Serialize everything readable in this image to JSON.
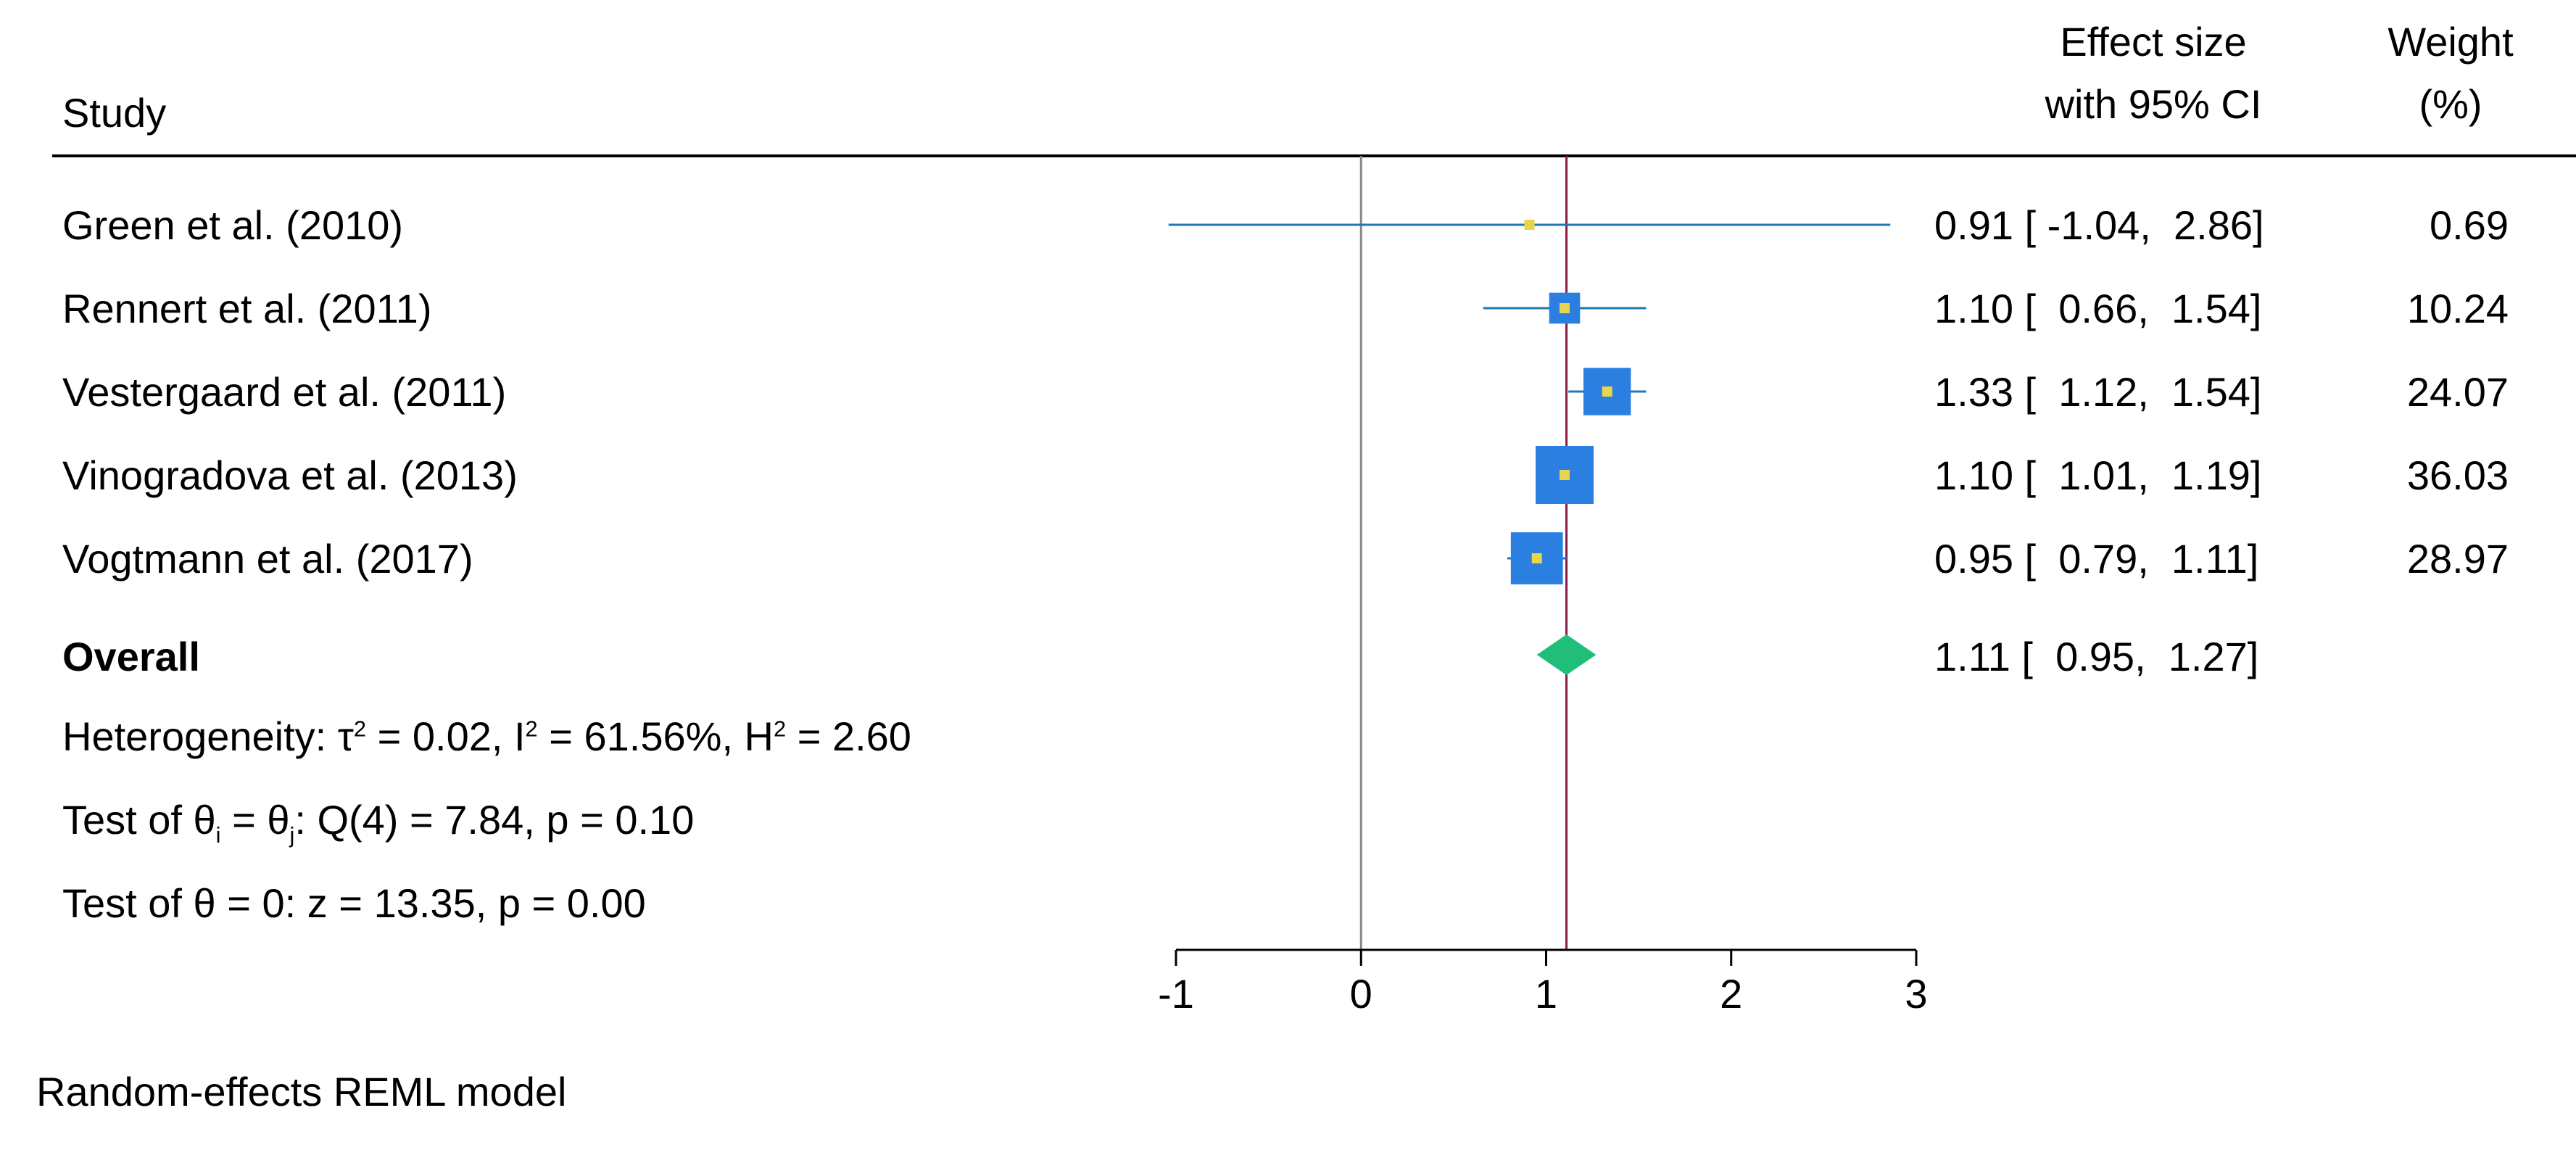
{
  "header": {
    "study": "Study",
    "effect_line1": "Effect size",
    "effect_line2": "with 95% CI",
    "weight_line1": "Weight",
    "weight_line2": "(%)"
  },
  "stats": {
    "overall_label": "Overall",
    "heterogeneity": {
      "prefix": "Heterogeneity: τ",
      "tau_sup": "2",
      "tau_val": " = 0.02, I",
      "i_sup": "2",
      "i_val": " = 61.56%, H",
      "h_sup": "2",
      "h_val": " = 2.60"
    },
    "test_theta_ij": {
      "a": "Test of θ",
      "sub_i": "i",
      "b": " = θ",
      "sub_j": "j",
      "c": ": Q(4) = 7.84, p = 0.10"
    },
    "test_theta_0": "Test of θ = 0: z = 13.35, p = 0.00",
    "model": "Random-effects REML model"
  },
  "colors": {
    "ci_line": "#1f77b4",
    "study_box": "#2a7fe0",
    "point": "#e8d44d",
    "diamond": "#1fbf7a",
    "overall_line": "#8b1a4a",
    "null_line": "#888888",
    "axis": "#000000"
  },
  "chart_data": {
    "type": "forest",
    "xlim": [
      -1,
      3
    ],
    "x_ticks": [
      -1,
      0,
      1,
      2,
      3
    ],
    "x_tick_labels": [
      "-1",
      "0",
      "1",
      "2",
      "3"
    ],
    "null_value": 0,
    "studies": [
      {
        "name": "Green et al. (2010)",
        "es": 0.91,
        "lo": -1.04,
        "hi": 2.86,
        "weight": 0.69,
        "es_text": "0.91 [ -1.04,  2.86]",
        "weight_text": "0.69"
      },
      {
        "name": "Rennert et al. (2011)",
        "es": 1.1,
        "lo": 0.66,
        "hi": 1.54,
        "weight": 10.24,
        "es_text": "1.10 [  0.66,  1.54]",
        "weight_text": "10.24"
      },
      {
        "name": "Vestergaard et al. (2011)",
        "es": 1.33,
        "lo": 1.12,
        "hi": 1.54,
        "weight": 24.07,
        "es_text": "1.33 [  1.12,  1.54]",
        "weight_text": "24.07"
      },
      {
        "name": "Vinogradova et al. (2013)",
        "es": 1.1,
        "lo": 1.01,
        "hi": 1.19,
        "weight": 36.03,
        "es_text": "1.10 [  1.01,  1.19]",
        "weight_text": "36.03"
      },
      {
        "name": "Vogtmann et al. (2017)",
        "es": 0.95,
        "lo": 0.79,
        "hi": 1.11,
        "weight": 28.97,
        "es_text": "0.95 [  0.79,  1.11]",
        "weight_text": "28.97"
      }
    ],
    "overall": {
      "es": 1.11,
      "lo": 0.95,
      "hi": 1.27,
      "es_text": "1.11 [  0.95,  1.27]"
    }
  }
}
